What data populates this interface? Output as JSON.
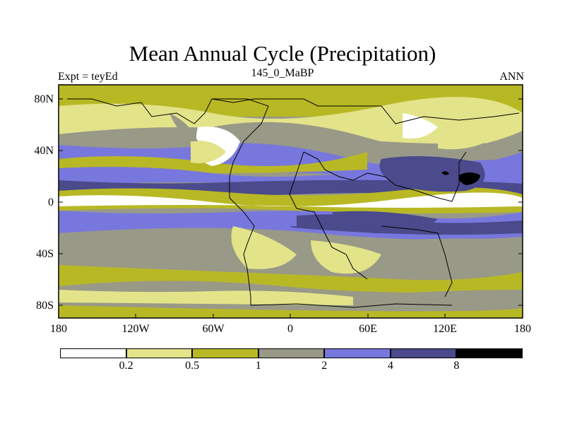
{
  "title": "Mean Annual Cycle (Precipitation)",
  "subtitle_left": "Expt = teyEd",
  "subtitle_center": "145_0_MaBP",
  "subtitle_right": "ANN",
  "lat_ticks": [
    "80N",
    "40N",
    "0",
    "40S",
    "80S"
  ],
  "lon_ticks": [
    "180",
    "120W",
    "60W",
    "0",
    "60E",
    "120E",
    "180"
  ],
  "colorbar": {
    "colors": [
      "#ffffff",
      "#e3e38a",
      "#b8b825",
      "#999988",
      "#7777dd",
      "#4a4a8c",
      "#000000"
    ],
    "labels": [
      "0.2",
      "0.5",
      "1",
      "2",
      "4",
      "8"
    ]
  },
  "colors": {
    "land_outline": "#000000"
  }
}
